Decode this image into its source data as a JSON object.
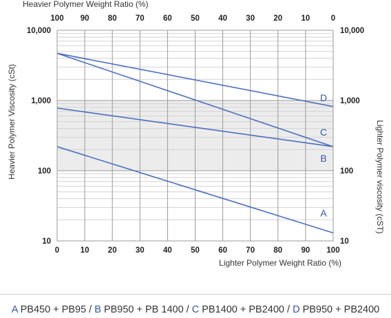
{
  "chart_data": {
    "type": "line",
    "x_title_bottom": "Lighter Polymer Weight Ratio (%)",
    "x_title_top": "Heavier Polymer Weight Ratio (%)",
    "y_title_left": "Heavier Polymer Viscosity (cSt)",
    "y_title_right": "Lighter Polymer viscosity (cST)",
    "x_ticks_bottom": [
      "0",
      "10",
      "20",
      "30",
      "40",
      "50",
      "60",
      "70",
      "80",
      "90",
      "100"
    ],
    "x_ticks_top": [
      "100",
      "90",
      "80",
      "70",
      "60",
      "50",
      "40",
      "30",
      "20",
      "10",
      "0"
    ],
    "y_ticks_left": [
      "10,000",
      "1,000",
      "100",
      "10"
    ],
    "y_ticks_right": [
      "10,000",
      "1,000",
      "100",
      "10"
    ],
    "xlim": [
      0,
      100
    ],
    "ylim": [
      10,
      10000
    ],
    "y_scale": "log",
    "grid": true,
    "series": [
      {
        "name": "A",
        "x": [
          0,
          100
        ],
        "values": [
          220,
          13
        ]
      },
      {
        "name": "B",
        "x": [
          0,
          100
        ],
        "values": [
          780,
          220
        ]
      },
      {
        "name": "C",
        "x": [
          0,
          100
        ],
        "values": [
          4700,
          220
        ]
      },
      {
        "name": "D",
        "x": [
          0,
          100
        ],
        "values": [
          4700,
          820
        ]
      }
    ],
    "line_color": "#4a6fbf",
    "label_color": "#3355aa"
  },
  "legend": {
    "items": [
      {
        "letter": "A",
        "text": "PB450 + PB95"
      },
      {
        "letter": "B",
        "text": "PB950 + PB 1400"
      },
      {
        "letter": "C",
        "text": "PB1400 + PB2400"
      },
      {
        "letter": "D",
        "text": "PB950 + PB2400"
      }
    ],
    "separator": " / "
  }
}
